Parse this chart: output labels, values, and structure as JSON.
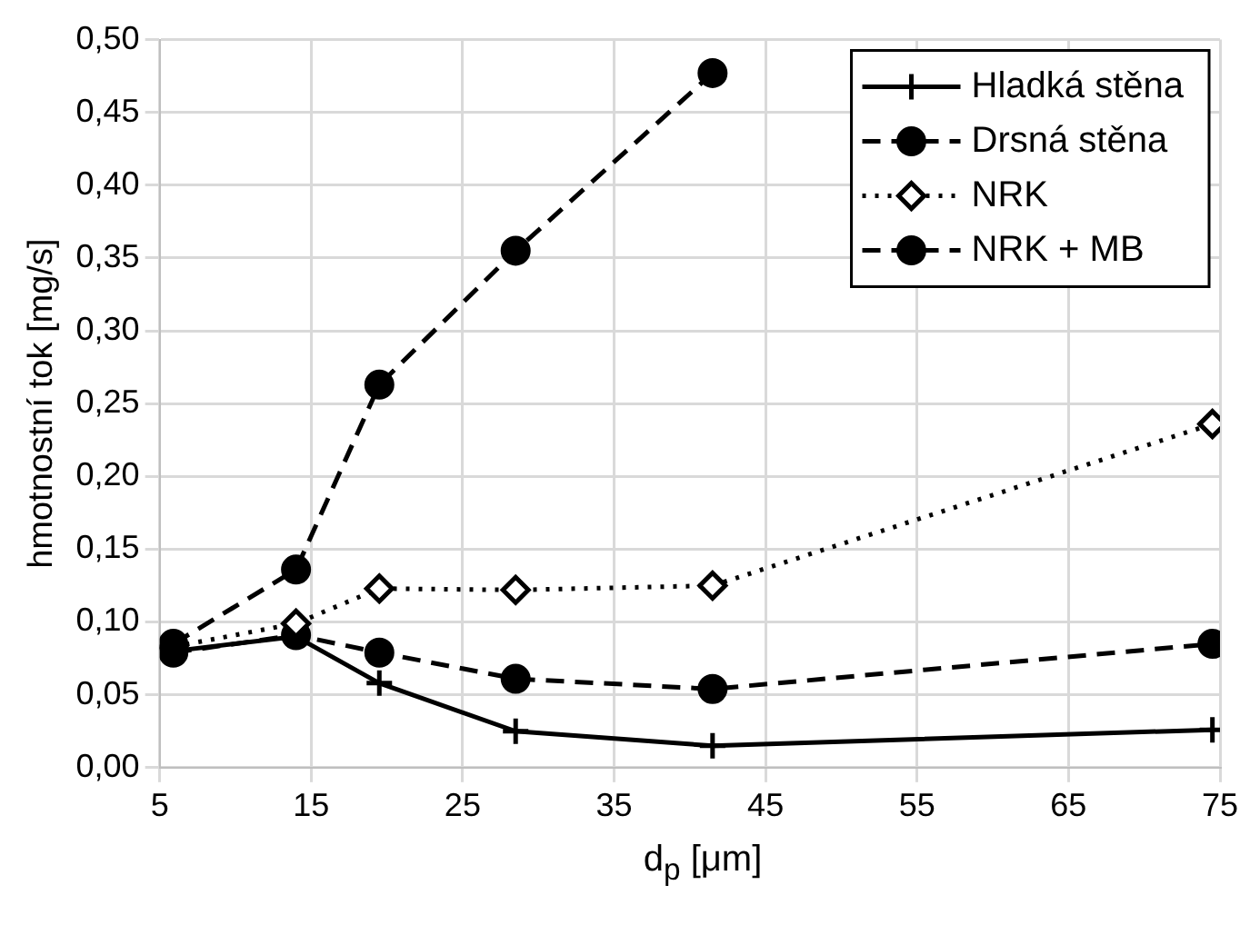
{
  "chart_data": {
    "type": "line",
    "xlabel": "d$_{p}$ [μm]",
    "ylabel": "hmotnostní tok [mg/s]",
    "x": [
      5.9,
      14,
      19.5,
      28.5,
      41.5,
      74.5
    ],
    "series": [
      {
        "name": "Hladká stěna",
        "color": "#000000",
        "values": [
          0.08,
          0.09,
          0.058,
          0.025,
          0.015,
          0.026
        ],
        "marker": "cross",
        "line_style": "solid"
      },
      {
        "name": "Drsná stěna",
        "color": "#000000",
        "values": [
          0.079,
          0.091,
          0.079,
          0.061,
          0.054,
          0.085
        ],
        "marker": "circle",
        "line_style": "dashed"
      },
      {
        "name": "NRK",
        "color": "#000000",
        "values": [
          0.083,
          0.099,
          0.123,
          0.122,
          0.125,
          0.236
        ],
        "marker": "diamond",
        "line_style": "dotted"
      },
      {
        "name": "NRK + MB",
        "color": "#000000",
        "values": [
          0.085,
          0.136,
          0.263,
          0.355,
          0.477,
          null
        ],
        "marker": "circle",
        "line_style": "dashed"
      }
    ],
    "xlim": [
      5,
      75
    ],
    "xticks": [
      5,
      15,
      25,
      35,
      45,
      55,
      65,
      75
    ],
    "ylim": [
      0,
      0.5
    ],
    "yticks": [
      {
        "value": 0,
        "label": "0,00"
      },
      {
        "value": 0.05,
        "label": "0,05"
      },
      {
        "value": 0.1,
        "label": "0,10"
      },
      {
        "value": 0.15,
        "label": "0,15"
      },
      {
        "value": 0.2,
        "label": "0,20"
      },
      {
        "value": 0.25,
        "label": "0,25"
      },
      {
        "value": 0.3,
        "label": "0,30"
      },
      {
        "value": 0.35,
        "label": "0,35"
      },
      {
        "value": 0.4,
        "label": "0,40"
      },
      {
        "value": 0.45,
        "label": "0,45"
      },
      {
        "value": 0.5,
        "label": "0,50"
      }
    ],
    "grid": true,
    "legend": "top right"
  }
}
